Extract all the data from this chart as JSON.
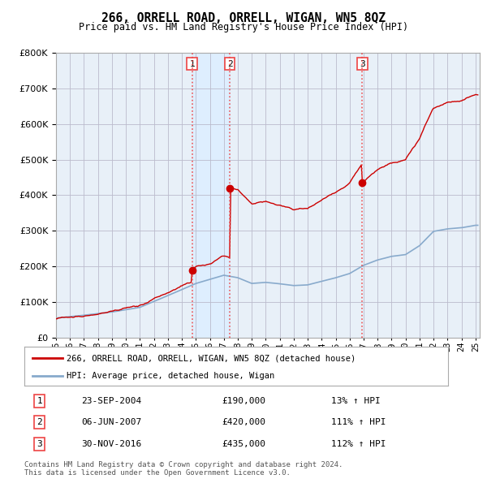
{
  "title": "266, ORRELL ROAD, ORRELL, WIGAN, WN5 8QZ",
  "subtitle": "Price paid vs. HM Land Registry's House Price Index (HPI)",
  "ylim": [
    0,
    800000
  ],
  "yticks": [
    0,
    100000,
    200000,
    300000,
    400000,
    500000,
    600000,
    700000,
    800000
  ],
  "sale_color": "#cc0000",
  "hpi_color": "#88aacc",
  "chart_bg": "#e8f0f8",
  "shade_between_color": "#ddeeff",
  "sale_label": "266, ORRELL ROAD, ORRELL, WIGAN, WN5 8QZ (detached house)",
  "hpi_label": "HPI: Average price, detached house, Wigan",
  "transactions": [
    {
      "num": 1,
      "date": "23-SEP-2004",
      "price": 190000,
      "hpi_pct": "13%",
      "x": 2004.73
    },
    {
      "num": 2,
      "date": "06-JUN-2007",
      "price": 420000,
      "hpi_pct": "111%",
      "x": 2007.43
    },
    {
      "num": 3,
      "date": "30-NOV-2016",
      "price": 435000,
      "hpi_pct": "112%",
      "x": 2016.91
    }
  ],
  "vline_color": "#ee4444",
  "background_color": "#ffffff",
  "grid_color": "#cccccc",
  "footer_text": "Contains HM Land Registry data © Crown copyright and database right 2024.\nThis data is licensed under the Open Government Licence v3.0.",
  "xlim": [
    1995.0,
    2025.3
  ],
  "xtick_years": [
    1995,
    1996,
    1997,
    1998,
    1999,
    2000,
    2001,
    2002,
    2003,
    2004,
    2005,
    2006,
    2007,
    2008,
    2009,
    2010,
    2011,
    2012,
    2013,
    2014,
    2015,
    2016,
    2017,
    2018,
    2019,
    2020,
    2021,
    2022,
    2023,
    2024,
    2025
  ]
}
